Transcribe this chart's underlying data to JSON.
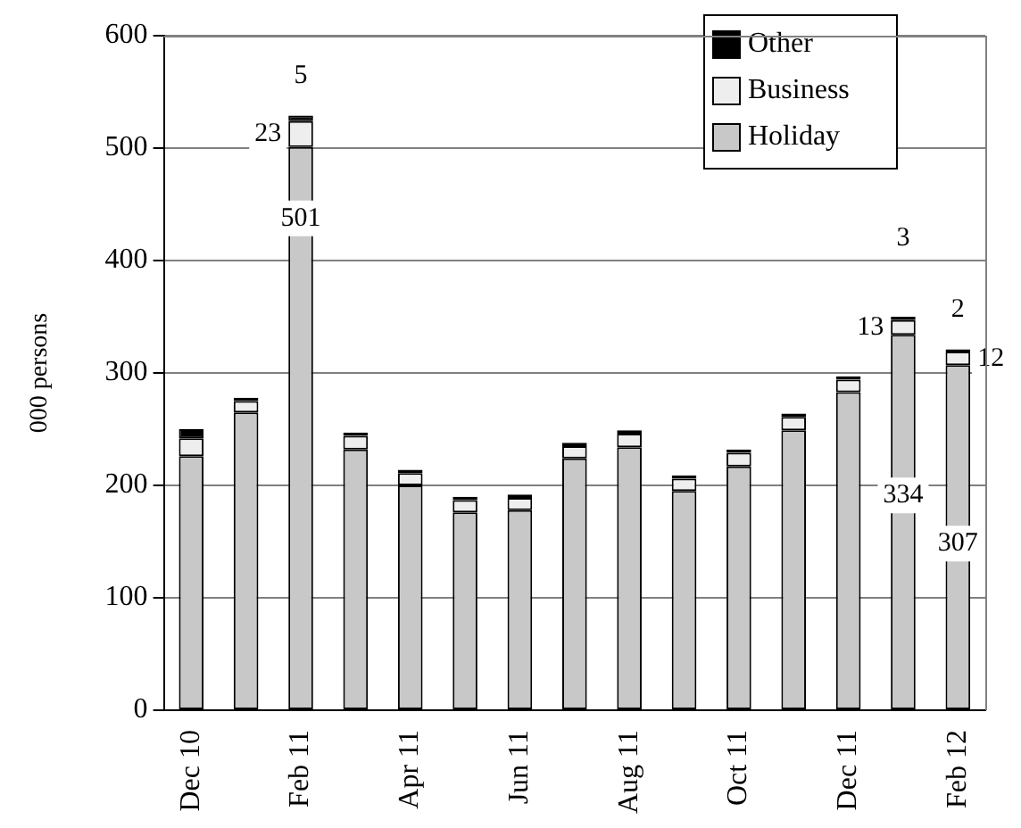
{
  "chart_data": {
    "type": "bar",
    "stacked": true,
    "ylabel": "000 persons",
    "categories": [
      "Dec 10",
      null,
      "Feb 11",
      null,
      "Apr 11",
      null,
      "Jun 11",
      null,
      "Aug 11",
      null,
      "Oct 11",
      null,
      "Dec 11",
      null,
      "Feb 12"
    ],
    "series": [
      {
        "name": "Holiday",
        "color": "#c8c8c8",
        "values": [
          226,
          265,
          501,
          232,
          200,
          176,
          178,
          224,
          234,
          195,
          217,
          249,
          283,
          334,
          307
        ],
        "value_labels": [
          null,
          null,
          "501",
          null,
          null,
          null,
          null,
          null,
          null,
          null,
          null,
          null,
          null,
          "334",
          "307"
        ]
      },
      {
        "name": "Business",
        "color": "#eeeeee",
        "values": [
          16,
          10,
          23,
          12,
          11,
          11,
          11,
          11,
          12,
          11,
          12,
          12,
          11,
          13,
          12
        ],
        "value_labels": [
          null,
          null,
          "23",
          null,
          null,
          null,
          null,
          null,
          null,
          null,
          null,
          null,
          null,
          "13",
          "12"
        ]
      },
      {
        "name": "Other",
        "color": "#000000",
        "values": [
          8,
          3,
          5,
          3,
          3,
          3,
          3,
          3,
          3,
          3,
          3,
          3,
          3,
          3,
          2
        ],
        "value_labels": [
          null,
          null,
          "5",
          null,
          null,
          null,
          null,
          null,
          null,
          null,
          null,
          null,
          null,
          "3",
          "2"
        ]
      }
    ],
    "ylim": [
      0,
      600
    ],
    "yticks": [
      0,
      100,
      200,
      300,
      400,
      500,
      600
    ],
    "grid": "y",
    "legend": "top right"
  }
}
